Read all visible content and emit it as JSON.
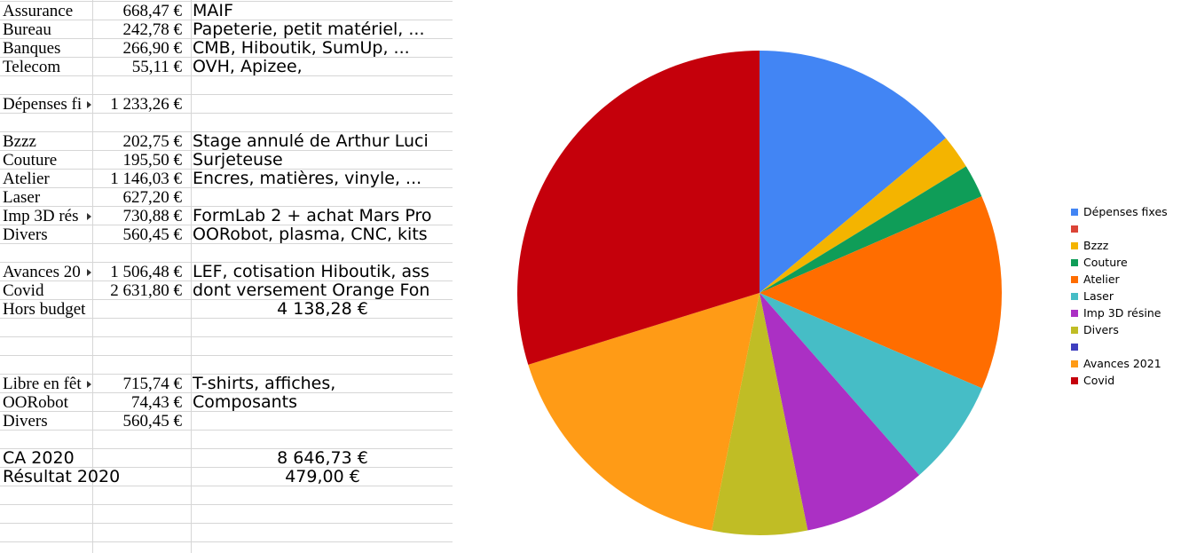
{
  "rows": [
    {
      "label": "Assurance",
      "amount": "668,47 €",
      "desc": "MAIF"
    },
    {
      "label": "Bureau",
      "amount": "242,78 €",
      "desc": "Papeterie, petit matériel, ..."
    },
    {
      "label": "Banques",
      "amount": "266,90 €",
      "desc": "CMB, Hiboutik, SumUp, ..."
    },
    {
      "label": "Telecom",
      "amount": "55,11 €",
      "desc": "OVH, Apizee,"
    },
    {
      "label": "",
      "amount": "",
      "desc": ""
    },
    {
      "label": "Dépenses fi",
      "amount": "1 233,26 €",
      "desc": "",
      "truncated": true
    },
    {
      "label": "",
      "amount": "",
      "desc": ""
    },
    {
      "label": "Bzzz",
      "amount": "202,75 €",
      "desc": "Stage annulé de Arthur Luci"
    },
    {
      "label": "Couture",
      "amount": "195,50 €",
      "desc": "Surjeteuse"
    },
    {
      "label": "Atelier",
      "amount": "1 146,03 €",
      "desc": "Encres, matières, vinyle, ..."
    },
    {
      "label": "Laser",
      "amount": "627,20 €",
      "desc": ""
    },
    {
      "label": "Imp 3D rés",
      "amount": "730,88 €",
      "desc": "FormLab 2 + achat Mars Pro",
      "truncated": true
    },
    {
      "label": "Divers",
      "amount": "560,45 €",
      "desc": "OORobot, plasma, CNC, kits"
    },
    {
      "label": "",
      "amount": "",
      "desc": ""
    },
    {
      "label": "Avances 20",
      "amount": "1 506,48 €",
      "desc": "LEF, cotisation Hiboutik, ass",
      "truncated": true
    },
    {
      "label": "Covid",
      "amount": "2 631,80 €",
      "desc": "dont versement Orange Fon"
    },
    {
      "label": "Hors budget",
      "amount": "",
      "desc": "",
      "merged": "4 138,28 €"
    },
    {
      "label": "",
      "amount": "",
      "desc": ""
    },
    {
      "label": "",
      "amount": "",
      "desc": ""
    },
    {
      "label": "",
      "amount": "",
      "desc": ""
    },
    {
      "label": "Libre en fêt",
      "amount": "715,74 €",
      "desc": "T-shirts, affiches,",
      "truncated": true
    },
    {
      "label": "OORobot",
      "amount": "74,43 €",
      "desc": "Composants"
    },
    {
      "label": "Divers",
      "amount": "560,45 €",
      "desc": ""
    },
    {
      "label": "",
      "amount": "",
      "desc": ""
    },
    {
      "label": "CA 2020",
      "amount": "",
      "desc": "",
      "merged": "8 646,73 €",
      "sans": true
    },
    {
      "label": "Résultat 2020",
      "amount": "",
      "desc": "",
      "merged": "479,00 €",
      "sans": true
    }
  ],
  "chart_data": {
    "type": "pie",
    "labels": [
      "Dépenses fixes",
      "",
      "Bzzz",
      "Couture",
      "Atelier",
      "Laser",
      "Imp 3D résine",
      "Divers",
      "",
      "Avances 2021",
      "Covid"
    ],
    "values": [
      1233.26,
      0,
      202.75,
      195.5,
      1146.03,
      627.2,
      730.88,
      560.45,
      0,
      1506.48,
      2631.8
    ],
    "colors": [
      "#4285f4",
      "#db4437",
      "#f4b400",
      "#0f9d58",
      "#ff6d00",
      "#46bdc6",
      "#ab30c4",
      "#c0bd25",
      "#3f3fbf",
      "#ff9b16",
      "#c5000b"
    ],
    "legend_position": "right"
  }
}
